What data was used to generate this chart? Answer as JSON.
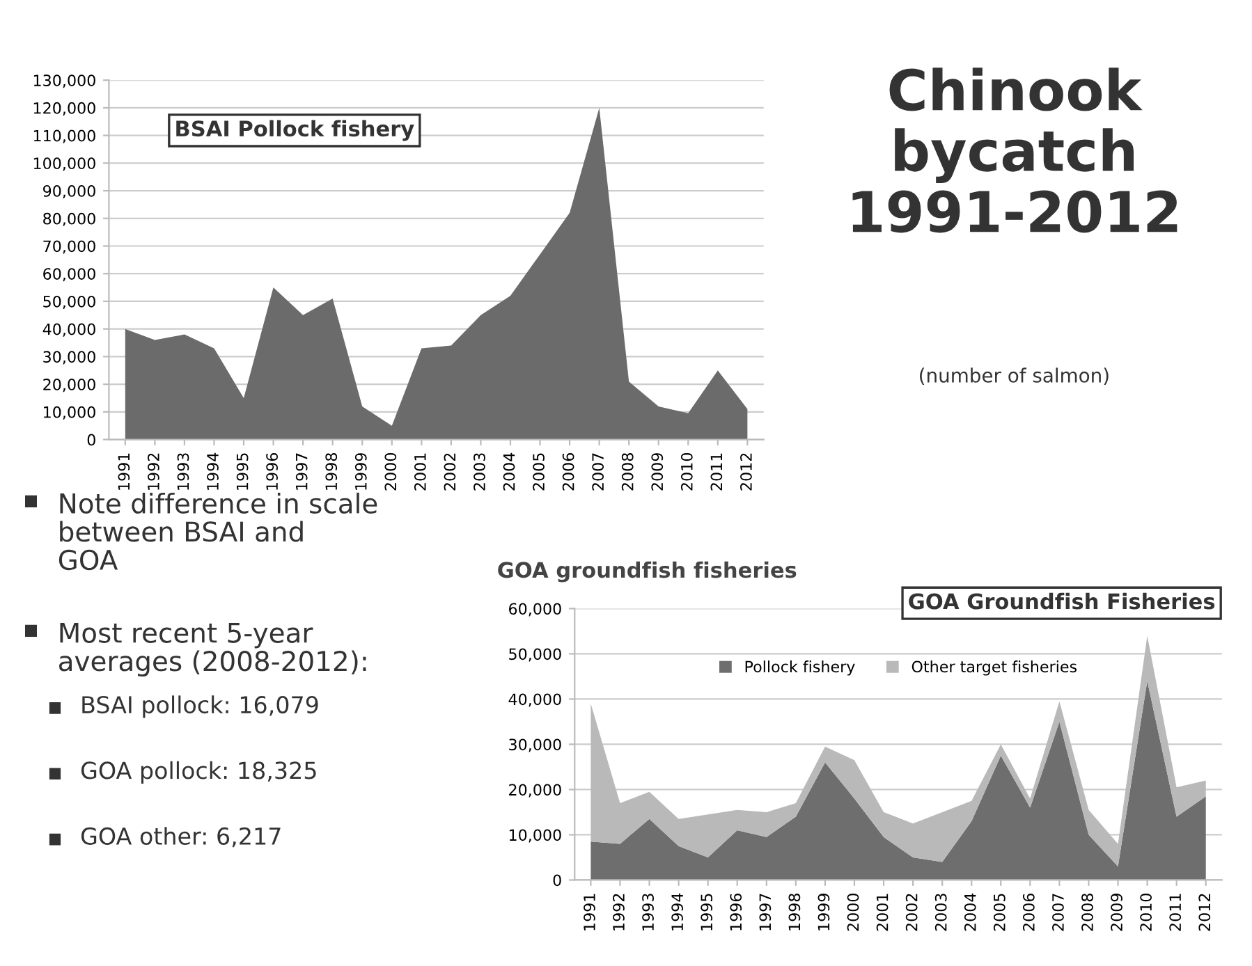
{
  "chart_data": [
    {
      "type": "area",
      "title": "BSAI Pollock fishery",
      "categories": [
        "1991",
        "1992",
        "1993",
        "1994",
        "1995",
        "1996",
        "1997",
        "1998",
        "1999",
        "2000",
        "2001",
        "2002",
        "2003",
        "2004",
        "2005",
        "2006",
        "2007",
        "2008",
        "2009",
        "2010",
        "2011",
        "2012"
      ],
      "series": [
        {
          "color": "#6b6b6b",
          "values": [
            40000,
            36000,
            38000,
            33000,
            15000,
            55000,
            45000,
            51000,
            12000,
            5000,
            33000,
            34000,
            45000,
            52000,
            67000,
            82000,
            120000,
            21000,
            12000,
            9500,
            25000,
            11000
          ]
        }
      ],
      "ylim": [
        0,
        130000
      ],
      "yticks": [
        0,
        {
          "value": 10000,
          "label": "10,000"
        },
        {
          "value": 20000,
          "label": "20,000"
        },
        {
          "value": 30000,
          "label": "30,000"
        },
        {
          "value": 40000,
          "label": "40,000"
        },
        {
          "value": 50000,
          "label": "50,000"
        },
        {
          "value": 60000,
          "label": "60,000"
        },
        {
          "value": 70000,
          "label": "70,000"
        },
        {
          "value": 80000,
          "label": "80,000"
        },
        {
          "value": 90000,
          "label": "90,000"
        },
        {
          "value": 100000,
          "label": "100,000"
        },
        {
          "value": 110000,
          "label": "110,000"
        },
        {
          "value": 120000,
          "label": "120,000"
        },
        {
          "value": 130000,
          "label": "130,000"
        }
      ],
      "grid": "y"
    },
    {
      "type": "other",
      "title": "Chinook\nbycatch\n1991-2012",
      "subtitle": "(number of salmon)"
    },
    {
      "type": "other",
      "annotations": [
        "Note difference in scale\nbetween BSAI and\nGOA",
        "Most recent 5-year\naverages (2008-2012):"
      ]
    },
    {
      "type": "other",
      "annotations": [
        "BSAI pollock: 16,079",
        "GOA pollock: 18,325",
        "GOA other: 6,217"
      ]
    },
    {
      "type": "area",
      "title": "GOA groundfish fisheries",
      "subtitle": "GOA Groundfish Fisheries",
      "stacked": true,
      "categories": [
        "1991",
        "1992",
        "1993",
        "1994",
        "1995",
        "1996",
        "1997",
        "1998",
        "1999",
        "2000",
        "2001",
        "2002",
        "2003",
        "2004",
        "2005",
        "2006",
        "2007",
        "2008",
        "2009",
        "2010",
        "2011",
        "2012"
      ],
      "series": [
        {
          "name": "Pollock fishery",
          "color": "#6e6e6e",
          "values": [
            8500,
            8000,
            13500,
            7500,
            5000,
            11000,
            9500,
            14000,
            26000,
            18000,
            9500,
            5000,
            4000,
            13000,
            27500,
            16000,
            35000,
            10000,
            3000,
            44000,
            14000,
            18500
          ]
        },
        {
          "name": "Other target fisheries",
          "color": "#b9b9b9",
          "values": [
            30500,
            9000,
            6000,
            6000,
            9500,
            4500,
            5500,
            3000,
            3500,
            8500,
            5500,
            7500,
            11000,
            4500,
            2500,
            2000,
            4500,
            5500,
            5000,
            10000,
            6500,
            3500
          ]
        }
      ],
      "ylim": [
        0,
        60000
      ],
      "yticks": [
        0,
        {
          "value": 10000,
          "label": "10,000"
        },
        {
          "value": 20000,
          "label": "20,000"
        },
        {
          "value": 30000,
          "label": "30,000"
        },
        {
          "value": 40000,
          "label": "40,000"
        },
        {
          "value": 50000,
          "label": "50,000"
        },
        {
          "value": 60000,
          "label": "60,000"
        }
      ],
      "grid": "y",
      "legend": "top"
    }
  ]
}
